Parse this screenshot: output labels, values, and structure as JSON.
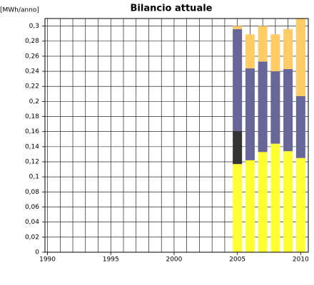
{
  "chart_data": {
    "type": "stacked_bar",
    "title": "Bilancio attuale",
    "y_label": "[MWh/anno]",
    "x": [
      2005,
      2006,
      2007,
      2008,
      2009,
      2010
    ],
    "series": [
      {
        "color": "#ffff33",
        "values": [
          0.117,
          0.122,
          0.133,
          0.144,
          0.134,
          0.125
        ]
      },
      {
        "color": "#333333",
        "values": [
          0.044,
          0,
          0,
          0,
          0,
          0
        ]
      },
      {
        "color": "#666699",
        "values": [
          0.135,
          0.122,
          0.12,
          0.096,
          0.109,
          0.082
        ]
      },
      {
        "color": "#ffcc66",
        "values": [
          0.004,
          0.045,
          0.047,
          0.049,
          0.053,
          0.103
        ]
      }
    ],
    "xlim": [
      1989.8,
      2010.6
    ],
    "xticks": [
      1990,
      1995,
      2000,
      2005,
      2010
    ],
    "minor_grid_step": 1,
    "ylim": [
      0,
      0.31
    ],
    "yticks": [
      0,
      {
        "value": 0.02,
        "label": "0,02"
      },
      {
        "value": 0.04,
        "label": "0,04"
      },
      {
        "value": 0.06,
        "label": "0,06"
      },
      {
        "value": 0.08,
        "label": "0,08"
      },
      {
        "value": 0.1,
        "label": "0,1"
      },
      {
        "value": 0.12,
        "label": "0,12"
      },
      {
        "value": 0.14,
        "label": "0,14"
      },
      {
        "value": 0.16,
        "label": "0,16"
      },
      {
        "value": 0.18,
        "label": "0,18"
      },
      {
        "value": 0.2,
        "label": "0,2"
      },
      {
        "value": 0.22,
        "label": "0,22"
      },
      {
        "value": 0.24,
        "label": "0,24"
      },
      {
        "value": 0.26,
        "label": "0,26"
      },
      {
        "value": 0.28,
        "label": "0,28"
      },
      {
        "value": 0.3,
        "label": "0,3"
      }
    ],
    "grid": true
  }
}
